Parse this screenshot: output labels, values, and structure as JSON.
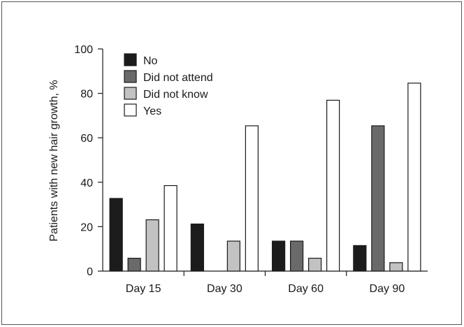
{
  "chart_data": {
    "type": "bar",
    "title": "",
    "xlabel": "",
    "ylabel": "Patients with new hair growth, %",
    "categories": [
      "Day 15",
      "Day 30",
      "Day 60",
      "Day 90"
    ],
    "ylim": [
      0,
      100
    ],
    "yticks": [
      0,
      20,
      40,
      60,
      80,
      100
    ],
    "legend_position": "top-left",
    "grid": false,
    "series": [
      {
        "name": "No",
        "color": "#1c1c1c",
        "values": [
          32.7,
          21.2,
          13.5,
          11.5
        ]
      },
      {
        "name": "Did not attend",
        "color": "#6a6a6a",
        "values": [
          5.8,
          0,
          13.5,
          65.4
        ]
      },
      {
        "name": "Did not know",
        "color": "#c2c2c2",
        "values": [
          23.1,
          13.5,
          5.8,
          3.8
        ]
      },
      {
        "name": "Yes",
        "color": "#ffffff",
        "values": [
          38.5,
          65.4,
          76.9,
          84.6
        ]
      }
    ]
  }
}
